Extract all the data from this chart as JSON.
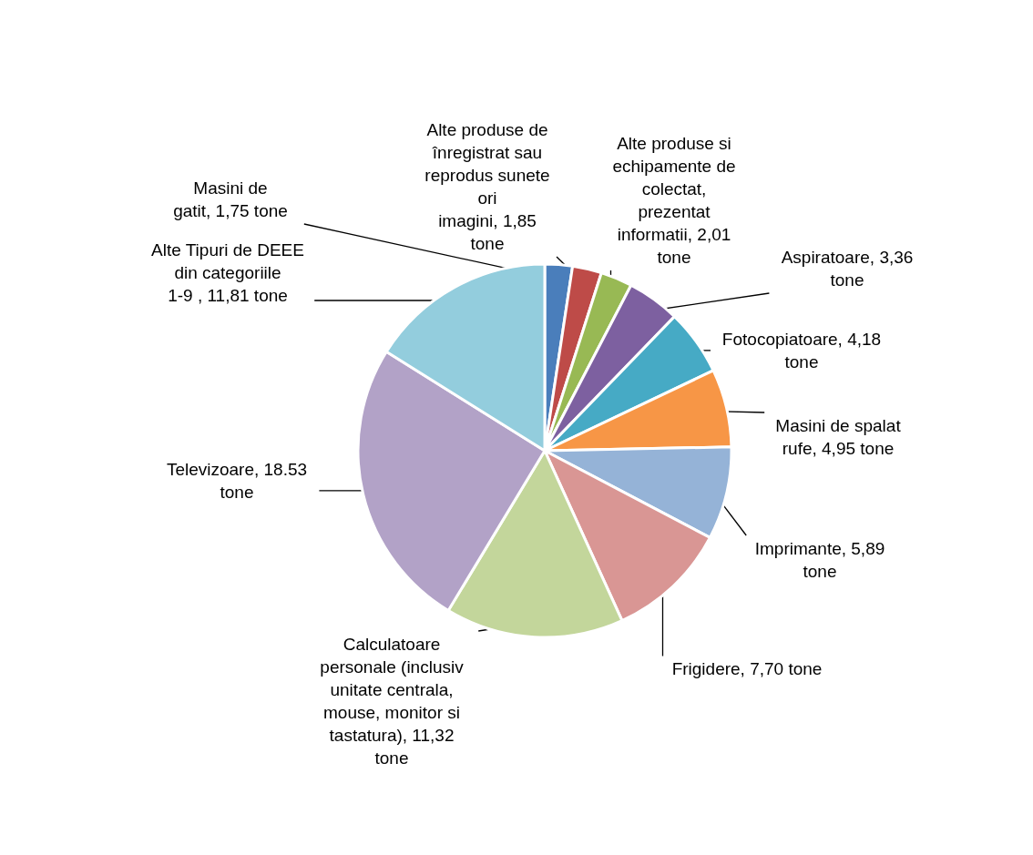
{
  "chart_data": {
    "type": "pie",
    "categories": [
      "Masini de gatit",
      "Alte produse de înregistrat sau reprodus sunete ori imagini",
      "Alte produse si echipamente de colectat, prezentat informatii",
      "Aspiratoare",
      "Fotocopiatoare",
      "Masini de spalat rufe",
      "Imprimante",
      "Frigidere",
      "Calculatoare personale (inclusiv unitate centrala, mouse, monitor si tastatura)",
      "Televizoare",
      "Alte Tipuri de DEEE din categoriile 1-9 "
    ],
    "values": [
      1.75,
      1.85,
      2.01,
      3.36,
      4.18,
      4.95,
      5.89,
      7.7,
      11.32,
      18.53,
      11.81
    ],
    "value_labels": [
      "1,75 tone",
      "1,85 tone",
      "2,01 tone",
      "3,36 tone",
      "4,18 tone",
      "4,95 tone",
      "5,89 tone",
      "7,70 tone",
      "11,32 tone",
      "18.53 tone",
      "11,81 tone"
    ],
    "colors": [
      "#4a7ebb",
      "#be4b48",
      "#98b954",
      "#7d60a0",
      "#46aac5",
      "#f79646",
      "#95b3d7",
      "#d99694",
      "#c3d69b",
      "#b2a2c7",
      "#93cddd"
    ]
  }
}
